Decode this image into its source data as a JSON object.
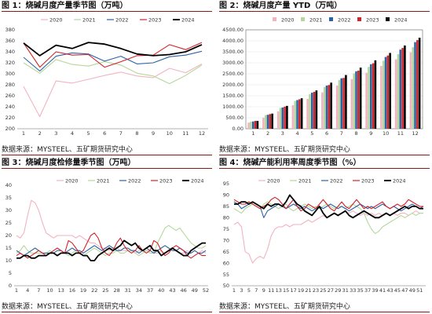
{
  "source": "数据来源：MYSTEEL、五矿期货研究中心",
  "chart_data": [
    {
      "type": "line",
      "title": "图 1：烧碱月度产量季节图（万吨）",
      "categories": [
        "1",
        "2",
        "3",
        "4",
        "5",
        "6",
        "7",
        "8",
        "9",
        "10",
        "11",
        "12"
      ],
      "ylim": [
        200,
        380
      ],
      "yticks": [
        "200",
        "220",
        "240",
        "260",
        "280",
        "300",
        "320",
        "340",
        "360",
        "380"
      ],
      "grid": false,
      "legend_position": "top",
      "series": [
        {
          "name": "2020",
          "color": "#f2b3c0",
          "values": [
            277,
            222,
            287,
            283,
            290,
            297,
            303,
            296,
            293,
            310,
            302,
            318
          ]
        },
        {
          "name": "2021",
          "color": "#b4d89b",
          "values": [
            320,
            301,
            326,
            317,
            314,
            322,
            316,
            301,
            296,
            282,
            297,
            316
          ]
        },
        {
          "name": "2022",
          "color": "#2a62a6",
          "values": [
            330,
            305,
            332,
            338,
            336,
            323,
            332,
            318,
            320,
            331,
            334,
            341
          ]
        },
        {
          "name": "2023",
          "color": "#d2232a",
          "values": [
            356,
            312,
            340,
            334,
            335,
            312,
            322,
            333,
            334,
            353,
            344,
            357
          ]
        },
        {
          "name": "2024",
          "color": "#000000",
          "values": [
            356,
            333,
            352,
            346,
            357,
            354,
            346,
            336,
            333,
            335,
            340,
            353
          ]
        }
      ]
    },
    {
      "type": "bar",
      "title": "图 2：烧碱月度产量 YTD（万吨）",
      "categories": [
        "1",
        "2",
        "3",
        "4",
        "5",
        "6",
        "7",
        "8",
        "9",
        "10",
        "11",
        "12"
      ],
      "ylim": [
        0,
        4500
      ],
      "yticks": [
        "0.00",
        "500.00",
        "1000.00",
        "1500.00",
        "2000.00",
        "2500.00",
        "3000.00",
        "3500.00",
        "4000.00",
        "4500.00"
      ],
      "legend_position": "top",
      "series": [
        {
          "name": "2020",
          "color": "#f2b3c0",
          "values": [
            277,
            499,
            786,
            1069,
            1359,
            1656,
            1959,
            2255,
            2548,
            2858,
            3160,
            3478
          ]
        },
        {
          "name": "2021",
          "color": "#b4d89b",
          "values": [
            320,
            621,
            947,
            1264,
            1578,
            1900,
            2216,
            2517,
            2813,
            3095,
            3392,
            3708
          ]
        },
        {
          "name": "2022",
          "color": "#2a62a6",
          "values": [
            330,
            635,
            967,
            1305,
            1641,
            1964,
            2296,
            2614,
            2934,
            3265,
            3599,
            3940
          ]
        },
        {
          "name": "2023",
          "color": "#d2232a",
          "values": [
            356,
            668,
            1008,
            1342,
            1677,
            1989,
            2311,
            2644,
            2978,
            3331,
            3675,
            4032
          ]
        },
        {
          "name": "2024",
          "color": "#000000",
          "values": [
            356,
            689,
            1041,
            1387,
            1744,
            2098,
            2444,
            2780,
            3113,
            3448,
            3788,
            4141
          ]
        }
      ]
    },
    {
      "type": "line",
      "title": "图 3：烧碱月度检修量季节图（万吨）",
      "categories": [
        "1",
        "4",
        "7",
        "10",
        "13",
        "16",
        "19",
        "22",
        "25",
        "28",
        "31",
        "34",
        "37",
        "40",
        "43",
        "46",
        "49",
        "52"
      ],
      "x": [
        1,
        2,
        3,
        4,
        5,
        6,
        7,
        8,
        9,
        10,
        11,
        12,
        13,
        14,
        15,
        16,
        17,
        18,
        19,
        20,
        21,
        22,
        23,
        24,
        25,
        26,
        27,
        28,
        29,
        30,
        31,
        32,
        33,
        34,
        35,
        36,
        37,
        38,
        39,
        40,
        41,
        42,
        43,
        44,
        45,
        46,
        47,
        48,
        49,
        50,
        51,
        52
      ],
      "ylim": [
        0,
        40
      ],
      "yticks": [
        "0",
        "5",
        "10",
        "15",
        "20",
        "25",
        "30",
        "35",
        "40"
      ],
      "legend_position": "top",
      "series": [
        {
          "name": "2020",
          "color": "#f2b3c0",
          "values": [
            20,
            19,
            21,
            28,
            34,
            33,
            30,
            25,
            21,
            20,
            19,
            20,
            20,
            20,
            20,
            20,
            19,
            20,
            19,
            18,
            17,
            17,
            16,
            15,
            15,
            14,
            15,
            15,
            14,
            14,
            14,
            14,
            13,
            14,
            14,
            14,
            14,
            13,
            13,
            14,
            13,
            14,
            15,
            14,
            13,
            13,
            14,
            13,
            14,
            13,
            14,
            13
          ]
        },
        {
          "name": "2021",
          "color": "#b4d89b",
          "values": [
            13,
            14,
            16,
            14,
            13,
            13,
            13,
            13,
            13,
            14,
            13,
            12,
            13,
            13,
            12,
            13,
            14,
            13,
            12,
            13,
            14,
            15,
            14,
            13,
            12,
            13,
            13,
            14,
            13,
            13,
            14,
            14,
            13,
            12,
            13,
            14,
            13,
            13,
            17,
            20,
            23,
            24,
            23,
            22,
            23,
            21,
            19,
            17,
            16,
            15,
            15,
            16
          ]
        },
        {
          "name": "2022",
          "color": "#2a62a6",
          "values": [
            14,
            13,
            12,
            13,
            14,
            15,
            14,
            13,
            13,
            13,
            13,
            14,
            14,
            13,
            14,
            15,
            14,
            14,
            13,
            14,
            15,
            16,
            15,
            14,
            15,
            16,
            15,
            14,
            14,
            15,
            15,
            14,
            14,
            13,
            14,
            15,
            14,
            13,
            14,
            15,
            16,
            15,
            14,
            14,
            15,
            14,
            13,
            13,
            14,
            13,
            13,
            14
          ]
        },
        {
          "name": "2023",
          "color": "#d2232a",
          "values": [
            12,
            13,
            12,
            11,
            12,
            13,
            14,
            13,
            12,
            13,
            14,
            15,
            14,
            13,
            18,
            17,
            15,
            13,
            14,
            17,
            20,
            21,
            19,
            15,
            13,
            12,
            14,
            17,
            19,
            16,
            14,
            13,
            14,
            16,
            14,
            13,
            14,
            18,
            17,
            14,
            12,
            13,
            15,
            16,
            15,
            14,
            12,
            11,
            12,
            13,
            12,
            12
          ]
        },
        {
          "name": "2024",
          "color": "#000000",
          "values": [
            11,
            11,
            12,
            12,
            11,
            11,
            12,
            12,
            12,
            13,
            13,
            12,
            13,
            13,
            13,
            12,
            13,
            13,
            12,
            12,
            10,
            10,
            12,
            13,
            14,
            15,
            14,
            15,
            16,
            18,
            17,
            16,
            17,
            15,
            14,
            15,
            16,
            14,
            14,
            12,
            13,
            14,
            15,
            14,
            13,
            12,
            12,
            14,
            15,
            16,
            17,
            17
          ]
        }
      ]
    },
    {
      "type": "line",
      "title": "图 4：烧碱产能利用率周度季节图（%）",
      "categories": [
        "1",
        "3",
        "5",
        "7",
        "9",
        "11",
        "13",
        "15",
        "17",
        "19",
        "21",
        "23",
        "25",
        "27",
        "29",
        "31",
        "33",
        "35",
        "37",
        "39",
        "41",
        "43",
        "45",
        "47",
        "49",
        "51"
      ],
      "x": [
        1,
        2,
        3,
        4,
        5,
        6,
        7,
        8,
        9,
        10,
        11,
        12,
        13,
        14,
        15,
        16,
        17,
        18,
        19,
        20,
        21,
        22,
        23,
        24,
        25,
        26,
        27,
        28,
        29,
        30,
        31,
        32,
        33,
        34,
        35,
        36,
        37,
        38,
        39,
        40,
        41,
        42,
        43,
        44,
        45,
        46,
        47,
        48,
        49,
        50,
        51,
        52
      ],
      "ylim": [
        50,
        95
      ],
      "yticks": [
        "50",
        "55",
        "60",
        "65",
        "70",
        "75",
        "80",
        "85",
        "90",
        "95"
      ],
      "legend_position": "top",
      "series": [
        {
          "name": "2020",
          "color": "#f2b3c0",
          "values": [
            77,
            78,
            76,
            65,
            64,
            60,
            62,
            63,
            62,
            66,
            72,
            75,
            76,
            76,
            77,
            76,
            77,
            77,
            77,
            78,
            79,
            78,
            79,
            80,
            81,
            80,
            81,
            82,
            81,
            82,
            83,
            82,
            83,
            82,
            81,
            82,
            81,
            82,
            81,
            82,
            81,
            82,
            81,
            82,
            81,
            82,
            82,
            81,
            82,
            83,
            82,
            82
          ]
        },
        {
          "name": "2021",
          "color": "#b4d89b",
          "values": [
            84,
            83,
            82,
            84,
            85,
            86,
            85,
            84,
            86,
            87,
            86,
            85,
            84,
            85,
            86,
            84,
            83,
            84,
            85,
            86,
            85,
            84,
            85,
            84,
            85,
            86,
            85,
            84,
            85,
            85,
            84,
            85,
            86,
            85,
            84,
            82,
            78,
            75,
            73,
            74,
            76,
            77,
            78,
            79,
            80,
            81,
            80,
            81,
            82,
            81,
            82,
            82
          ]
        },
        {
          "name": "2022",
          "color": "#2a62a6",
          "values": [
            87,
            86,
            84,
            85,
            86,
            87,
            86,
            85,
            80,
            83,
            84,
            85,
            86,
            85,
            84,
            85,
            86,
            85,
            84,
            85,
            84,
            83,
            84,
            85,
            84,
            85,
            86,
            85,
            84,
            85,
            84,
            83,
            84,
            85,
            86,
            85,
            84,
            85,
            84,
            85,
            86,
            85,
            84,
            85,
            84,
            83,
            84,
            85,
            86,
            85,
            84,
            85
          ]
        },
        {
          "name": "2023",
          "color": "#d2232a",
          "values": [
            88,
            87,
            86,
            86,
            87,
            86,
            85,
            84,
            85,
            86,
            88,
            89,
            88,
            86,
            84,
            86,
            88,
            85,
            83,
            84,
            86,
            85,
            84,
            86,
            88,
            86,
            84,
            83,
            85,
            87,
            85,
            84,
            86,
            88,
            86,
            84,
            85,
            84,
            85,
            86,
            87,
            85,
            84,
            85,
            86,
            85,
            86,
            88,
            87,
            86,
            85,
            85
          ]
        },
        {
          "name": "2024",
          "color": "#000000",
          "values": [
            86,
            86,
            87,
            87,
            86,
            87,
            86,
            85,
            84,
            86,
            85,
            86,
            86,
            85,
            87,
            90,
            88,
            86,
            85,
            83,
            82,
            81,
            83,
            85,
            82,
            80,
            81,
            82,
            81,
            82,
            83,
            81,
            80,
            81,
            82,
            83,
            82,
            81,
            80,
            80,
            81,
            82,
            81,
            82,
            83,
            84,
            85,
            84,
            85,
            85,
            84,
            84
          ]
        }
      ]
    }
  ]
}
